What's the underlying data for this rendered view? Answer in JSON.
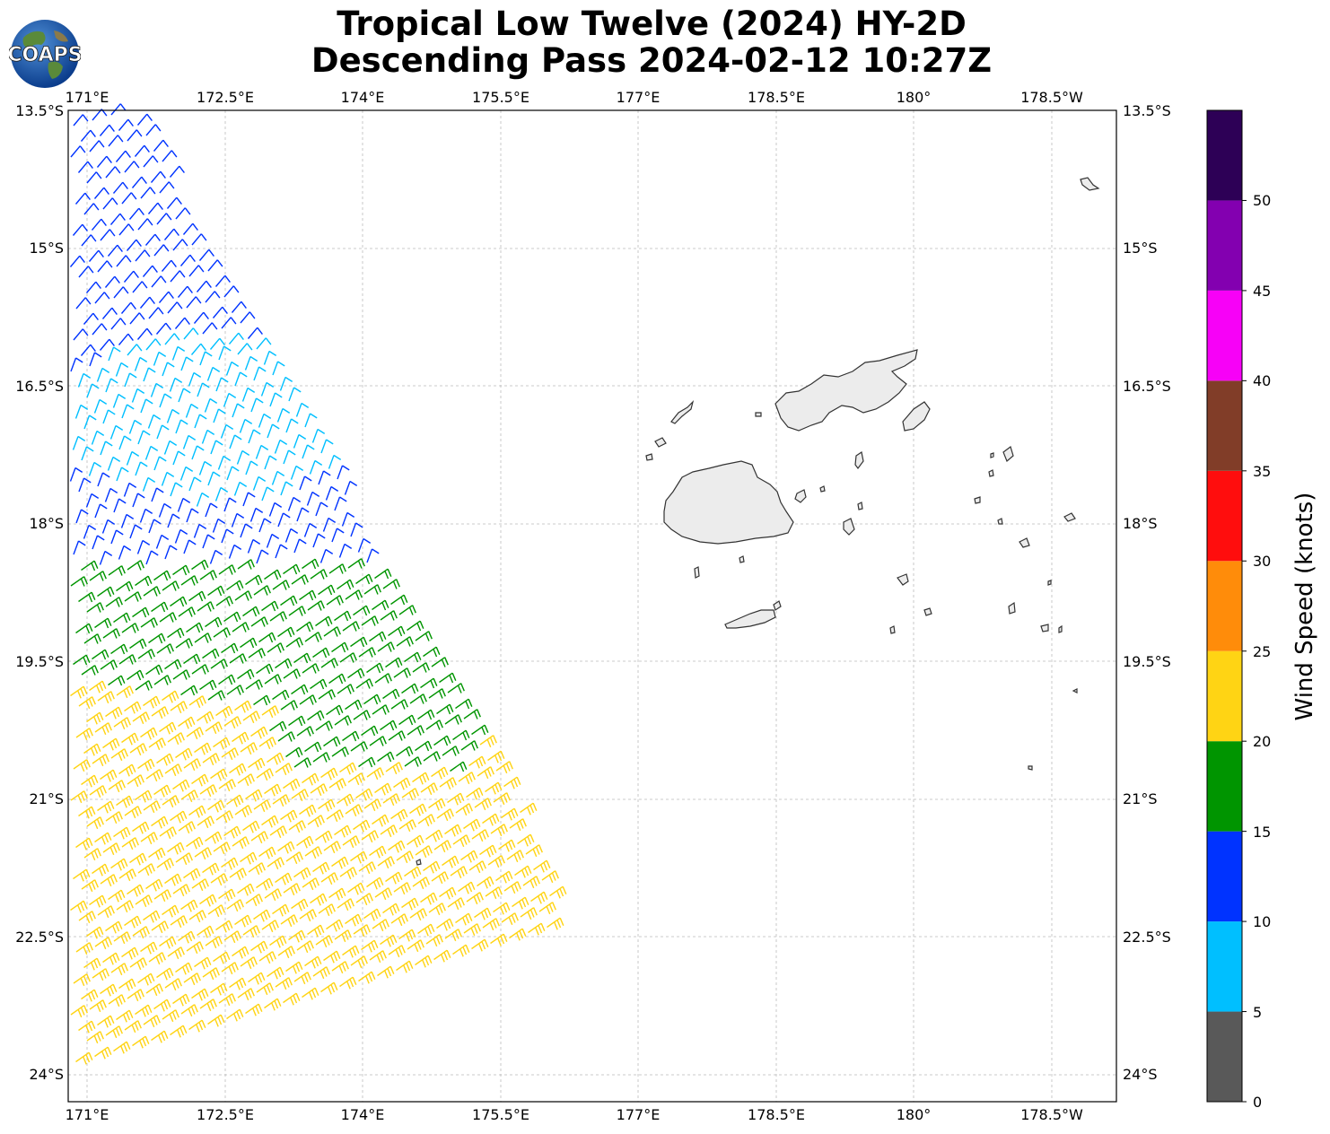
{
  "title": {
    "line1": "Tropical Low Twelve (2024) HY-2D",
    "line2": "Descending Pass 2024-02-12 10:27Z"
  },
  "logo": {
    "text": "COAPS"
  },
  "map": {
    "lon_labels": [
      "171°E",
      "172.5°E",
      "174°E",
      "175.5°E",
      "177°E",
      "178.5°E",
      "180°",
      "178.5°W"
    ],
    "lat_labels": [
      "13.5°S",
      "15°S",
      "16.5°S",
      "18°S",
      "19.5°S",
      "21°S",
      "22.5°S",
      "24°S"
    ],
    "lon_range": [
      170.8,
      182.2
    ],
    "lat_range": [
      -24.3,
      -13.5
    ],
    "land_fill": "#ececec",
    "coast_color": "#333333",
    "grid_color": "#bbbbbb"
  },
  "colorbar": {
    "title": "Wind Speed (knots)",
    "tick_labels": [
      "0",
      "5",
      "10",
      "15",
      "20",
      "25",
      "30",
      "35",
      "40",
      "45",
      "50"
    ],
    "bins": [
      {
        "from": 0,
        "to": 5,
        "color": "#595959"
      },
      {
        "from": 5,
        "to": 10,
        "color": "#00bfff"
      },
      {
        "from": 10,
        "to": 15,
        "color": "#0033ff"
      },
      {
        "from": 15,
        "to": 20,
        "color": "#009500"
      },
      {
        "from": 20,
        "to": 25,
        "color": "#ffd414"
      },
      {
        "from": 25,
        "to": 30,
        "color": "#ff8c0a"
      },
      {
        "from": 30,
        "to": 35,
        "color": "#ff0d0d"
      },
      {
        "from": 35,
        "to": 40,
        "color": "#813d28"
      },
      {
        "from": 40,
        "to": 45,
        "color": "#f701f7"
      },
      {
        "from": 45,
        "to": 50,
        "color": "#8300b0"
      },
      {
        "from": 50,
        "to": 55,
        "color": "#2d0056"
      }
    ]
  }
}
